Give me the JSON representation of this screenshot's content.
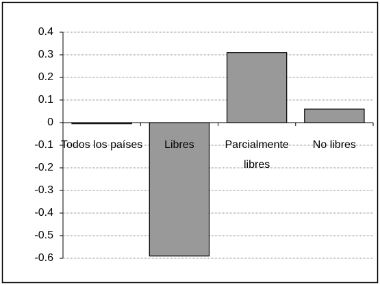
{
  "chart_data": {
    "type": "bar",
    "categories": [
      "Todos los países",
      "Libres",
      "Parcialmente libres",
      "No libres"
    ],
    "values": [
      -0.005,
      -0.59,
      0.31,
      0.06
    ],
    "color": "#999999",
    "ylim": [
      -0.6,
      0.4
    ],
    "yticks": [
      -0.6,
      -0.5,
      -0.4,
      -0.3,
      -0.2,
      -0.1,
      0,
      0.1,
      0.2,
      0.3,
      0.4
    ],
    "grid": true
  }
}
